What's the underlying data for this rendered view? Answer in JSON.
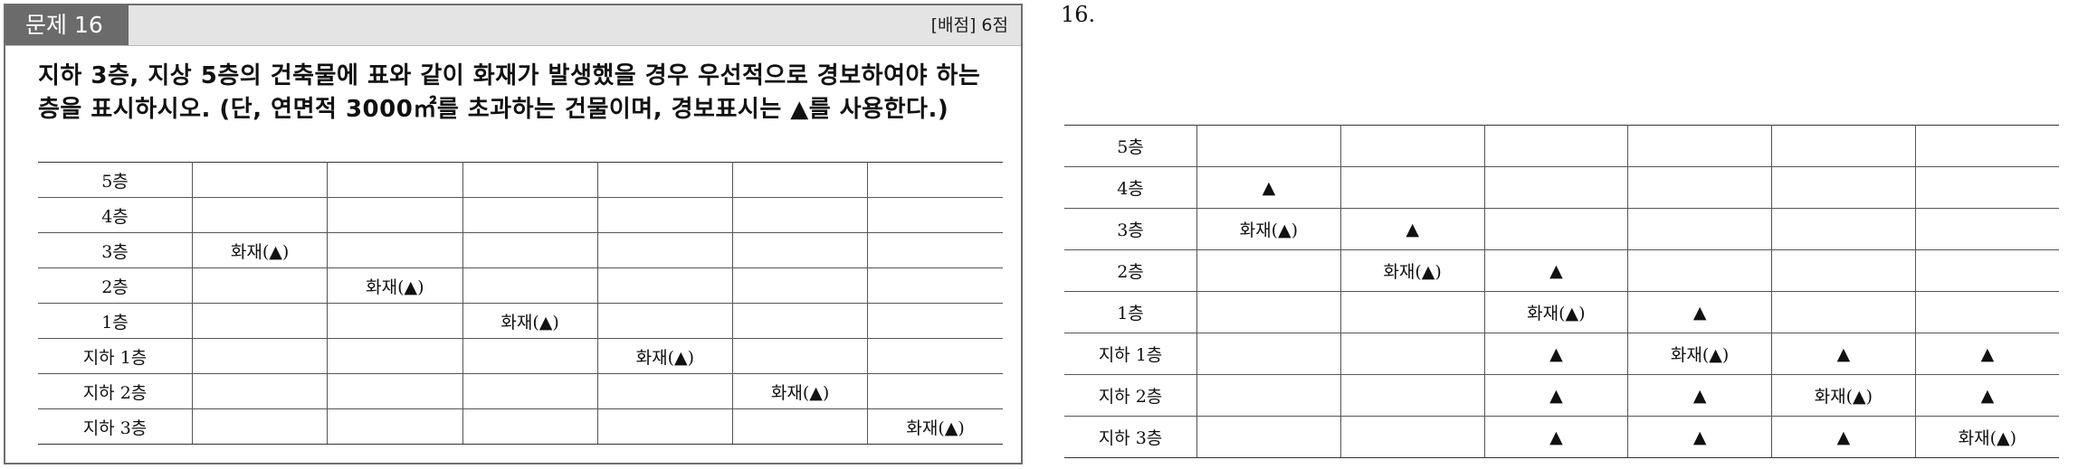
{
  "question": {
    "number_label": "문제 16",
    "score": "[배점] 6점",
    "text": "지하 3층, 지상 5층의 건축물에 표와 같이 화재가 발생했을 경우 우선적으로 경보하여야 하는 층을 표시하시오. (단, 연면적 3000㎡를 초과하는 건물이며, 경보표시는 ▲를 사용한다.)"
  },
  "question_table": {
    "rows": [
      {
        "floor": "5층",
        "cells": [
          "",
          "",
          "",
          "",
          "",
          ""
        ]
      },
      {
        "floor": "4층",
        "cells": [
          "",
          "",
          "",
          "",
          "",
          ""
        ]
      },
      {
        "floor": "3층",
        "cells": [
          "화재(▲)",
          "",
          "",
          "",
          "",
          ""
        ]
      },
      {
        "floor": "2층",
        "cells": [
          "",
          "화재(▲)",
          "",
          "",
          "",
          ""
        ]
      },
      {
        "floor": "1층",
        "cells": [
          "",
          "",
          "화재(▲)",
          "",
          "",
          ""
        ]
      },
      {
        "floor": "지하 1층",
        "cells": [
          "",
          "",
          "",
          "화재(▲)",
          "",
          ""
        ]
      },
      {
        "floor": "지하 2층",
        "cells": [
          "",
          "",
          "",
          "",
          "화재(▲)",
          ""
        ]
      },
      {
        "floor": "지하 3층",
        "cells": [
          "",
          "",
          "",
          "",
          "",
          "화재(▲)"
        ]
      }
    ]
  },
  "answer": {
    "label": "16."
  },
  "answer_table": {
    "rows": [
      {
        "floor": "5층",
        "cells": [
          "",
          "",
          "",
          "",
          "",
          ""
        ]
      },
      {
        "floor": "4층",
        "cells": [
          "▲",
          "",
          "",
          "",
          "",
          ""
        ]
      },
      {
        "floor": "3층",
        "cells": [
          "화재(▲)",
          "▲",
          "",
          "",
          "",
          ""
        ]
      },
      {
        "floor": "2층",
        "cells": [
          "",
          "화재(▲)",
          "▲",
          "",
          "",
          ""
        ]
      },
      {
        "floor": "1층",
        "cells": [
          "",
          "",
          "화재(▲)",
          "▲",
          "",
          ""
        ]
      },
      {
        "floor": "지하 1층",
        "cells": [
          "",
          "",
          "▲",
          "화재(▲)",
          "▲",
          "▲"
        ]
      },
      {
        "floor": "지하 2층",
        "cells": [
          "",
          "",
          "▲",
          "▲",
          "화재(▲)",
          "▲"
        ]
      },
      {
        "floor": "지하 3층",
        "cells": [
          "",
          "",
          "▲",
          "▲",
          "▲",
          "화재(▲)"
        ]
      }
    ]
  }
}
